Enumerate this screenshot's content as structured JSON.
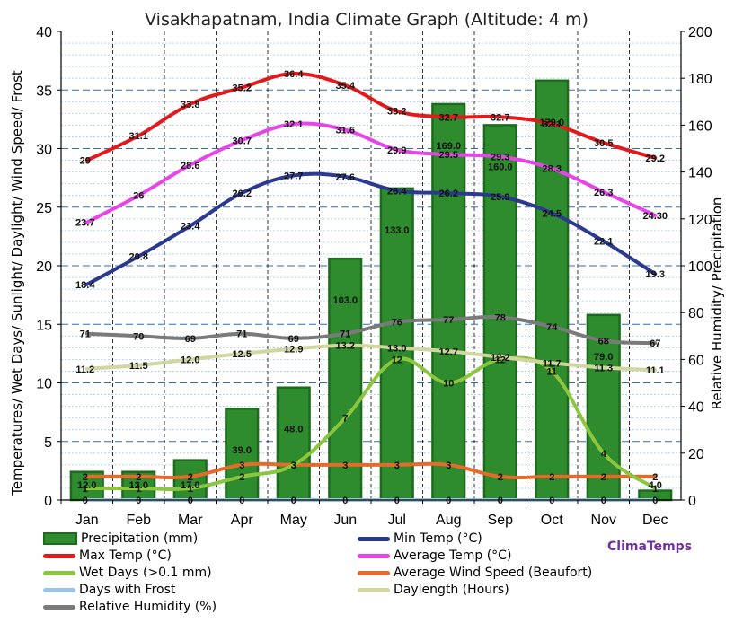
{
  "chart_data": {
    "type": "bar+line",
    "title": "Visakhapatnam, India Climate Graph (Altitude: 4 m)",
    "ylabel_left": "Temperatures/ Wet Days/ Sunlight/ Daylight/ Wind Speed/ Frost",
    "ylabel_right": "Relative Humidity/ Precipitation",
    "y_left_range": [
      0,
      40
    ],
    "y_left_ticks": [
      "0",
      "5",
      "10",
      "15",
      "20",
      "25",
      "30",
      "35",
      "40"
    ],
    "y_right_range": [
      0,
      200
    ],
    "y_right_ticks": [
      "0",
      "20",
      "40",
      "60",
      "80",
      "100",
      "120",
      "140",
      "160",
      "180",
      "200"
    ],
    "grid": true,
    "categories": [
      "Jan",
      "Feb",
      "Mar",
      "Apr",
      "May",
      "Jun",
      "Jul",
      "Aug",
      "Sep",
      "Oct",
      "Nov",
      "Dec"
    ],
    "series": [
      {
        "name": "Precipitation (mm)",
        "type": "bar",
        "axis": "right",
        "color": "#2e8b2e",
        "values": [
          12.0,
          12.0,
          17.0,
          39.0,
          48.0,
          103.0,
          133.0,
          169.0,
          160.0,
          179.0,
          79.0,
          4.0
        ],
        "labels": [
          "12.0",
          "12.0",
          "17.0",
          "39.0",
          "48.0",
          "103.0",
          "133.0",
          "169.0",
          "160.0",
          "179.0",
          "79.0",
          "4.0"
        ]
      },
      {
        "name": "Max Temp (°C)",
        "type": "line",
        "axis": "left",
        "color": "#e31a1c",
        "values": [
          29,
          31.1,
          33.8,
          35.2,
          36.4,
          35.4,
          33.2,
          32.7,
          32.7,
          32.1,
          30.5,
          29.2
        ],
        "labels": [
          "29",
          "31.1",
          "33.8",
          "35.2",
          "36.4",
          "35.4",
          "33.2",
          "32.7",
          "32.7",
          "32.1",
          "30.5",
          "29.2"
        ]
      },
      {
        "name": "Average Temp (°C)",
        "type": "line",
        "axis": "left",
        "color": "#e845e8",
        "values": [
          23.7,
          26,
          28.6,
          30.7,
          32.1,
          31.6,
          29.9,
          29.5,
          29.3,
          28.3,
          26.3,
          24.3
        ],
        "labels": [
          "23.7",
          "26",
          "28.6",
          "30.7",
          "32.1",
          "31.6",
          "29.9",
          "29.5",
          "29.3",
          "28.3",
          "26.3",
          "24.30"
        ]
      },
      {
        "name": "Min Temp (°C)",
        "type": "line",
        "axis": "left",
        "color": "#2b3990",
        "values": [
          18.4,
          20.8,
          23.4,
          26.2,
          27.7,
          27.6,
          26.4,
          26.2,
          25.9,
          24.5,
          22.1,
          19.3
        ],
        "labels": [
          "18.4",
          "20.8",
          "23.4",
          "26.2",
          "27.7",
          "27.6",
          "26.4",
          "26.2",
          "25.9",
          "24.5",
          "22.1",
          "19.3"
        ]
      },
      {
        "name": "Relative Humidity (%)",
        "type": "line",
        "axis": "right",
        "color": "#7a7a7a",
        "values": [
          71,
          70,
          69,
          71,
          69,
          71,
          76,
          77,
          78,
          74,
          68,
          67
        ],
        "labels": [
          "71",
          "70",
          "69",
          "71",
          "69",
          "71",
          "76",
          "77",
          "78",
          "74",
          "68",
          "67"
        ]
      },
      {
        "name": "Daylength (Hours)",
        "type": "line",
        "axis": "left",
        "color": "#d2d6a0",
        "values": [
          11.2,
          11.5,
          12.0,
          12.5,
          12.9,
          13.2,
          13.0,
          12.7,
          12.2,
          11.7,
          11.3,
          11.1
        ],
        "labels": [
          "11.2",
          "11.5",
          "12.0",
          "12.5",
          "12.9",
          "13.2",
          "13.0",
          "12.7",
          "12.2",
          "11.7",
          "11.3",
          "11.1"
        ]
      },
      {
        "name": "Wet Days (>0.1 mm)",
        "type": "line",
        "axis": "left",
        "color": "#8cc63f",
        "values": [
          1,
          1,
          1,
          2,
          3,
          7,
          12,
          10,
          12,
          11,
          4,
          1
        ],
        "labels": [
          "1",
          "1",
          "1",
          "2",
          "3",
          "7",
          "12",
          "10",
          "12",
          "11",
          "4",
          "1"
        ]
      },
      {
        "name": "Average Wind Speed (Beaufort)",
        "type": "line",
        "axis": "left",
        "color": "#e8692a",
        "values": [
          2,
          2,
          2,
          3,
          3,
          3,
          3,
          3,
          2,
          2,
          2,
          2
        ],
        "labels": [
          "2",
          "2",
          "2",
          "3",
          "3",
          "3",
          "3",
          "3",
          "2",
          "2",
          "2",
          "2"
        ]
      },
      {
        "name": "Days with Frost",
        "type": "line",
        "axis": "left",
        "color": "#9dc3e6",
        "values": [
          0,
          0,
          0,
          0,
          0,
          0,
          0,
          0,
          0,
          0,
          0,
          0
        ],
        "labels": [
          "0",
          "0",
          "0",
          "0",
          "0",
          "0",
          "0",
          "0",
          "0",
          "0",
          "0",
          "0"
        ]
      }
    ]
  },
  "legend": {
    "precipitation": "Precipitation (mm)",
    "max_temp": "Max Temp (°C)",
    "wet_days": "Wet Days (>0.1 mm)",
    "frost": "Days with Frost",
    "humidity": "Relative Humidity (%)",
    "min_temp": "Min Temp (°C)",
    "avg_temp": "Average Temp (°C)",
    "wind": "Average Wind Speed (Beaufort)",
    "daylength": "Daylength (Hours)"
  },
  "brand": "ClimaTemps"
}
